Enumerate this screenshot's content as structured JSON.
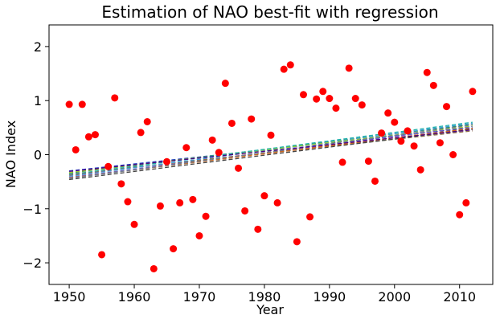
{
  "chart_data": {
    "type": "scatter",
    "title": "Estimation of NAO best-fit with regression",
    "xlabel": "Year",
    "ylabel": "NAO Index",
    "xlim": [
      1946.9,
      2015.1
    ],
    "ylim": [
      -2.4,
      2.4
    ],
    "xticks": [
      1950,
      1960,
      1970,
      1980,
      1990,
      2000,
      2010
    ],
    "yticks": [
      -2,
      -1,
      0,
      1,
      2
    ],
    "ytick_labels": [
      "−2",
      "−1",
      "0",
      "1",
      "2"
    ],
    "grid": false,
    "point_color": "#ff0000",
    "points": [
      [
        1950,
        0.93
      ],
      [
        1951,
        0.09
      ],
      [
        1952,
        0.93
      ],
      [
        1953,
        0.33
      ],
      [
        1954,
        0.37
      ],
      [
        1955,
        -1.85
      ],
      [
        1956,
        -0.22
      ],
      [
        1957,
        1.05
      ],
      [
        1958,
        -0.54
      ],
      [
        1959,
        -0.87
      ],
      [
        1960,
        -1.29
      ],
      [
        1961,
        0.41
      ],
      [
        1962,
        0.61
      ],
      [
        1963,
        -2.11
      ],
      [
        1964,
        -0.95
      ],
      [
        1965,
        -0.13
      ],
      [
        1966,
        -1.74
      ],
      [
        1967,
        -0.89
      ],
      [
        1968,
        0.13
      ],
      [
        1969,
        -0.83
      ],
      [
        1970,
        -1.5
      ],
      [
        1971,
        -1.14
      ],
      [
        1972,
        0.27
      ],
      [
        1973,
        0.04
      ],
      [
        1974,
        1.32
      ],
      [
        1975,
        0.58
      ],
      [
        1976,
        -0.25
      ],
      [
        1977,
        -1.04
      ],
      [
        1978,
        0.66
      ],
      [
        1979,
        -1.38
      ],
      [
        1980,
        -0.76
      ],
      [
        1981,
        0.36
      ],
      [
        1982,
        -0.89
      ],
      [
        1983,
        1.58
      ],
      [
        1984,
        1.66
      ],
      [
        1985,
        -1.61
      ],
      [
        1986,
        1.11
      ],
      [
        1987,
        -1.15
      ],
      [
        1988,
        1.03
      ],
      [
        1989,
        1.17
      ],
      [
        1990,
        1.04
      ],
      [
        1991,
        0.86
      ],
      [
        1992,
        -0.14
      ],
      [
        1993,
        1.6
      ],
      [
        1994,
        1.04
      ],
      [
        1995,
        0.92
      ],
      [
        1996,
        -0.12
      ],
      [
        1997,
        -0.49
      ],
      [
        1998,
        0.4
      ],
      [
        1999,
        0.77
      ],
      [
        2000,
        0.6
      ],
      [
        2001,
        0.25
      ],
      [
        2002,
        0.44
      ],
      [
        2003,
        0.16
      ],
      [
        2004,
        -0.28
      ],
      [
        2005,
        1.52
      ],
      [
        2006,
        1.28
      ],
      [
        2007,
        0.22
      ],
      [
        2008,
        0.89
      ],
      [
        2009,
        0.0
      ],
      [
        2010,
        -1.11
      ],
      [
        2011,
        -0.89
      ],
      [
        2012,
        1.17
      ]
    ],
    "regression_lines": {
      "style": "dashed",
      "x_range": [
        1950,
        2012
      ],
      "lines": [
        {
          "color": "#1f3fbf",
          "y_start": -0.3,
          "y_end": 0.5
        },
        {
          "color": "#2e8b57",
          "y_start": -0.34,
          "y_end": 0.56
        },
        {
          "color": "#cc3333",
          "y_start": -0.38,
          "y_end": 0.48
        },
        {
          "color": "#6a5acd",
          "y_start": -0.42,
          "y_end": 0.52
        },
        {
          "color": "#8b6f47",
          "y_start": -0.36,
          "y_end": 0.44
        },
        {
          "color": "#444444",
          "y_start": -0.46,
          "y_end": 0.47
        },
        {
          "color": "#3a9ad9",
          "y_start": -0.4,
          "y_end": 0.58
        },
        {
          "color": "#9acd32",
          "y_start": -0.33,
          "y_end": 0.53
        },
        {
          "color": "#20b2aa",
          "y_start": -0.37,
          "y_end": 0.6
        },
        {
          "color": "#d2691e",
          "y_start": -0.43,
          "y_end": 0.49
        },
        {
          "color": "#708090",
          "y_start": -0.44,
          "y_end": 0.55
        },
        {
          "color": "#4b0082",
          "y_start": -0.31,
          "y_end": 0.46
        }
      ]
    }
  }
}
